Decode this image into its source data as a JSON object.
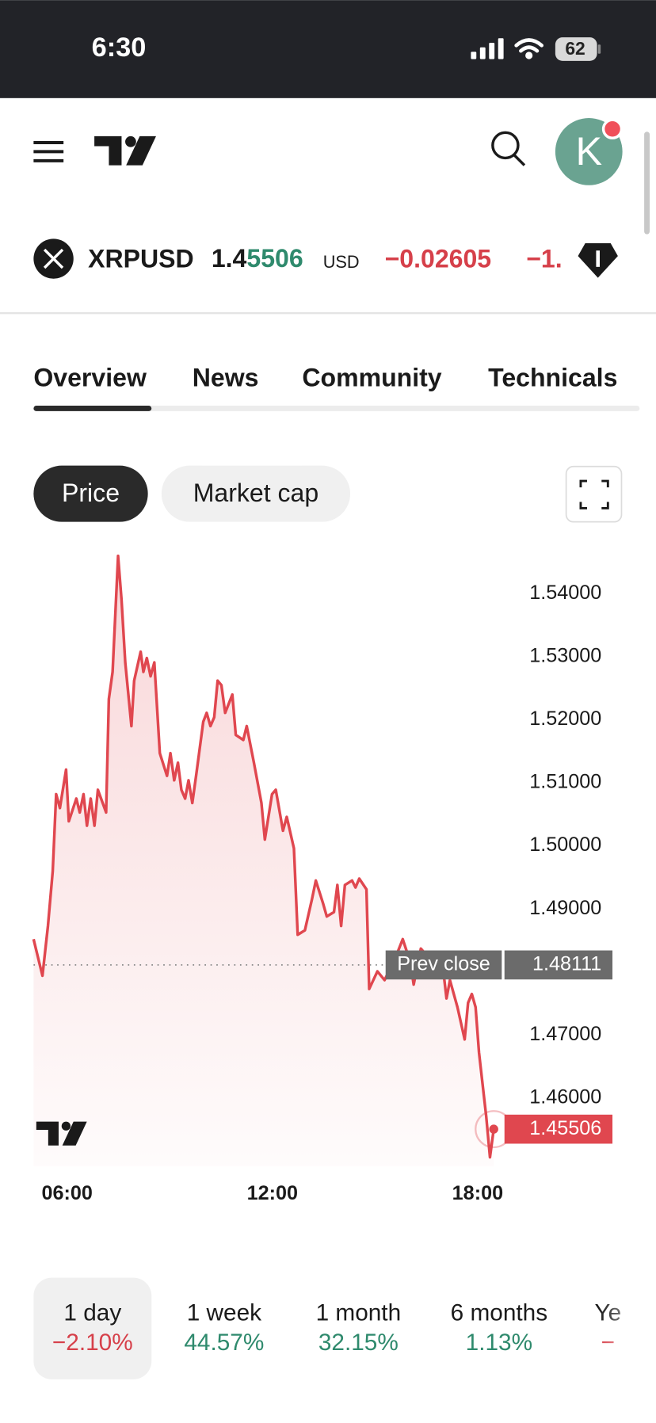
{
  "status_bar": {
    "time": "6:30",
    "battery": "62"
  },
  "ticker": {
    "symbol": "XRPUSD",
    "price_base": "1.4",
    "price_changed": "5506",
    "currency": "USD",
    "change": "−0.02605",
    "change_pct": "−1."
  },
  "tabs": [
    "Overview",
    "News",
    "Community",
    "Technicals"
  ],
  "chart_toggle": [
    "Price",
    "Market cap"
  ],
  "chart_data": {
    "type": "line",
    "color": "#e0474f",
    "x": [
      5.02,
      5.28,
      5.44,
      5.58,
      5.68,
      5.79,
      5.97,
      6.05,
      6.27,
      6.37,
      6.48,
      6.58,
      6.69,
      6.8,
      6.9,
      7.14,
      7.22,
      7.33,
      7.49,
      7.59,
      7.7,
      7.88,
      7.96,
      8.15,
      8.23,
      8.33,
      8.44,
      8.55,
      8.71,
      8.92,
      9.02,
      9.13,
      9.24,
      9.34,
      9.45,
      9.55,
      9.66,
      9.77,
      9.98,
      10.08,
      10.19,
      10.3,
      10.4,
      10.51,
      10.62,
      10.83,
      10.93,
      11.15,
      11.25,
      11.46,
      11.68,
      11.78,
      11.99,
      12.1,
      12.31,
      12.42,
      12.63,
      12.74,
      12.95,
      13.16,
      13.27,
      13.48,
      13.59,
      13.8,
      13.9,
      14.01,
      14.12,
      14.33,
      14.43,
      14.54,
      14.75,
      14.83,
      15.07,
      15.28,
      15.6,
      15.81,
      16.03,
      16.13,
      16.34,
      16.56,
      16.77,
      16.98,
      17.09,
      17.19,
      17.41,
      17.62,
      17.72,
      17.83,
      17.94,
      18.04,
      18.25,
      18.36,
      18.47
    ],
    "values": [
      1.4852,
      1.4794,
      1.4873,
      1.496,
      1.5082,
      1.506,
      1.5121,
      1.5039,
      1.5075,
      1.5053,
      1.5082,
      1.5032,
      1.5075,
      1.5032,
      1.5089,
      1.5053,
      1.5233,
      1.5276,
      1.546,
      1.5391,
      1.5291,
      1.519,
      1.5262,
      1.5308,
      1.5276,
      1.5298,
      1.5269,
      1.5291,
      1.5147,
      1.5111,
      1.5147,
      1.5104,
      1.5132,
      1.5089,
      1.5075,
      1.5104,
      1.5068,
      1.5111,
      1.5197,
      1.5211,
      1.519,
      1.5204,
      1.5262,
      1.5255,
      1.5211,
      1.524,
      1.5176,
      1.5168,
      1.519,
      1.5132,
      1.5068,
      1.501,
      1.5082,
      1.5089,
      1.5024,
      1.5046,
      1.4996,
      1.4859,
      1.4866,
      1.4916,
      1.4945,
      1.4909,
      1.4888,
      1.4895,
      1.4938,
      1.4873,
      1.4938,
      1.4945,
      1.4934,
      1.4948,
      1.4931,
      1.4773,
      1.4801,
      1.4787,
      1.4823,
      1.4852,
      1.4816,
      1.478,
      1.4837,
      1.4823,
      1.4816,
      1.4809,
      1.4758,
      1.4787,
      1.4744,
      1.4693,
      1.4751,
      1.4765,
      1.4744,
      1.4672,
      1.4571,
      1.4506,
      1.45506
    ],
    "xlim": [
      5.02,
      18.8
    ],
    "ylim": [
      1.4492,
      1.5478
    ],
    "xticks": [
      {
        "value": 6,
        "label": "06:00"
      },
      {
        "value": 12,
        "label": "12:00"
      },
      {
        "value": 18,
        "label": "18:00"
      }
    ],
    "yticks": [
      {
        "value": 1.54,
        "label": "1.54000"
      },
      {
        "value": 1.53,
        "label": "1.53000"
      },
      {
        "value": 1.52,
        "label": "1.52000"
      },
      {
        "value": 1.51,
        "label": "1.51000"
      },
      {
        "value": 1.5,
        "label": "1.50000"
      },
      {
        "value": 1.49,
        "label": "1.49000"
      },
      {
        "value": 1.47,
        "label": "1.47000"
      },
      {
        "value": 1.46,
        "label": "1.46000"
      }
    ],
    "prev_close": {
      "label": "Prev close",
      "value": 1.48111
    },
    "grid": false
  },
  "periods": [
    {
      "label": "1 day",
      "change": "−2.10%",
      "color": "#d6404a"
    },
    {
      "label": "1 week",
      "change": "44.57%",
      "color": "#2f8a6d"
    },
    {
      "label": "1 month",
      "change": "32.15%",
      "color": "#2f8a6d"
    },
    {
      "label": "6 months",
      "change": "1.13%",
      "color": "#2f8a6d"
    },
    {
      "label": "Ye",
      "change": "−",
      "color": "#d6404a"
    }
  ]
}
